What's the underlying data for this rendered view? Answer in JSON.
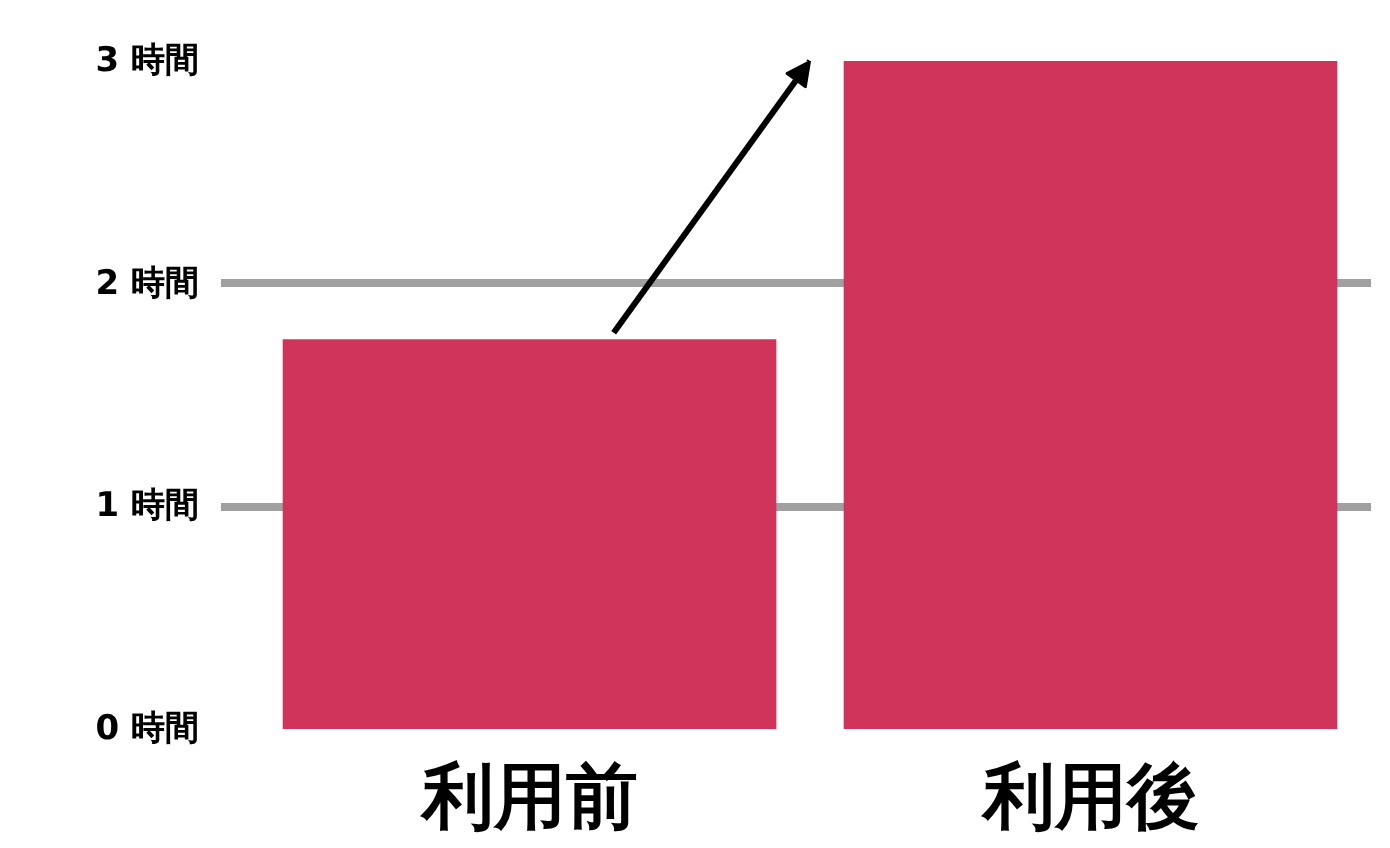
{
  "chart_data": {
    "type": "bar",
    "categories": [
      "利用前",
      "利用後"
    ],
    "values": [
      1.75,
      3
    ],
    "color": "#d0345a",
    "ylim": [
      0,
      3
    ],
    "yticks": [
      {
        "value": 0,
        "label": "0 時間"
      },
      {
        "value": 1,
        "label": "1 時間"
      },
      {
        "value": 2,
        "label": "2 時間"
      },
      {
        "value": 3,
        "label": "3 時間"
      }
    ],
    "grid": "y"
  }
}
